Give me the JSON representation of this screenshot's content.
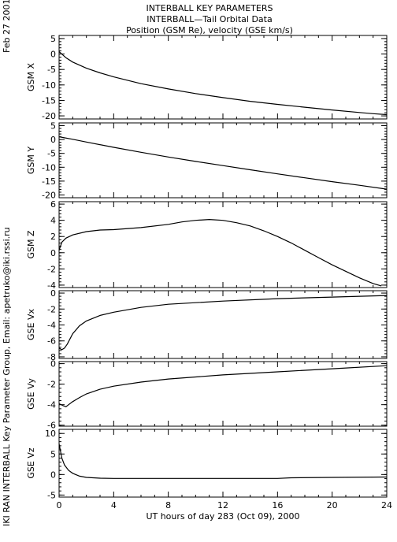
{
  "header": {
    "title_line1": "INTERBALL KEY PARAMETERS",
    "title_line2": "INTERBALL—Tail Orbital Data",
    "title_line3": "Position (GSM Re), velocity (GSE km/s)"
  },
  "side": {
    "date": "Feb 27 2001",
    "credit": "IKI RAN INTERBALL Key Parameter Group, Email: apetruko@iki.rssi.ru"
  },
  "chart_data": {
    "type": "line",
    "xlabel": "UT hours of day 283 (Oct 09), 2000",
    "xlim": [
      0,
      24
    ],
    "xticks": [
      0,
      4,
      8,
      12,
      16,
      20,
      24
    ],
    "panels": [
      {
        "name": "GSM X",
        "ylim": [
          -21,
          6
        ],
        "yticks": [
          5,
          0,
          -5,
          -10,
          -15,
          -20
        ],
        "x": [
          0,
          0.5,
          1,
          2,
          3,
          4,
          6,
          8,
          10,
          12,
          14,
          16,
          18,
          20,
          22,
          23,
          24
        ],
        "y": [
          0.8,
          -1.2,
          -2.6,
          -4.6,
          -6.1,
          -7.4,
          -9.6,
          -11.3,
          -12.8,
          -14.1,
          -15.3,
          -16.3,
          -17.2,
          -18.1,
          -18.9,
          -19.3,
          -19.6
        ]
      },
      {
        "name": "GSM Y",
        "ylim": [
          -21,
          6
        ],
        "yticks": [
          5,
          0,
          -5,
          -10,
          -15,
          -20
        ],
        "x": [
          0,
          1,
          2,
          4,
          6,
          8,
          10,
          12,
          14,
          16,
          18,
          20,
          22,
          24
        ],
        "y": [
          1.0,
          0.1,
          -0.9,
          -2.8,
          -4.6,
          -6.3,
          -7.9,
          -9.4,
          -10.9,
          -12.4,
          -13.8,
          -15.2,
          -16.5,
          -17.9
        ]
      },
      {
        "name": "GSM Z",
        "ylim": [
          -4.3,
          6.3
        ],
        "yticks": [
          6,
          4,
          2,
          0,
          -2,
          -4
        ],
        "x": [
          0,
          0.2,
          0.5,
          1,
          2,
          3,
          4,
          6,
          8,
          9,
          10,
          11,
          12,
          13,
          14,
          15,
          16,
          17,
          18,
          19,
          20,
          21,
          22,
          23,
          23.6
        ],
        "y": [
          0.3,
          1.3,
          1.8,
          2.2,
          2.6,
          2.8,
          2.85,
          3.1,
          3.5,
          3.8,
          4.0,
          4.1,
          4.0,
          3.7,
          3.3,
          2.7,
          2.0,
          1.2,
          0.3,
          -0.6,
          -1.5,
          -2.3,
          -3.1,
          -3.8,
          -4.1
        ]
      },
      {
        "name": "GSE Vx",
        "ylim": [
          -8.2,
          0.3
        ],
        "yticks": [
          0,
          -2,
          -4,
          -6,
          -8
        ],
        "x": [
          0,
          0.2,
          0.4,
          0.6,
          1,
          1.5,
          2,
          3,
          4,
          6,
          8,
          12,
          16,
          20,
          24
        ],
        "y": [
          -6.9,
          -7.1,
          -6.9,
          -6.4,
          -5.1,
          -4.1,
          -3.5,
          -2.8,
          -2.4,
          -1.8,
          -1.4,
          -1.0,
          -0.7,
          -0.5,
          -0.3
        ]
      },
      {
        "name": "GSE Vy",
        "ylim": [
          -6.1,
          0.2
        ],
        "yticks": [
          0,
          -2,
          -4,
          -6
        ],
        "x": [
          0,
          0.3,
          0.5,
          0.7,
          1,
          1.5,
          2,
          3,
          4,
          6,
          8,
          12,
          16,
          20,
          24
        ],
        "y": [
          -3.9,
          -4.1,
          -4.2,
          -4.0,
          -3.7,
          -3.3,
          -2.95,
          -2.5,
          -2.2,
          -1.8,
          -1.5,
          -1.1,
          -0.8,
          -0.5,
          -0.2
        ]
      },
      {
        "name": "GSE Vz",
        "ylim": [
          -5.5,
          11
        ],
        "yticks": [
          10,
          5,
          0,
          -5
        ],
        "x": [
          0,
          0.2,
          0.4,
          0.7,
          1,
          1.5,
          2,
          3,
          4,
          8,
          12,
          16,
          17,
          20,
          24
        ],
        "y": [
          7.5,
          4.0,
          2.3,
          1.0,
          0.3,
          -0.4,
          -0.7,
          -0.9,
          -0.95,
          -0.95,
          -0.95,
          -0.95,
          -0.8,
          -0.7,
          -0.6
        ]
      }
    ]
  }
}
